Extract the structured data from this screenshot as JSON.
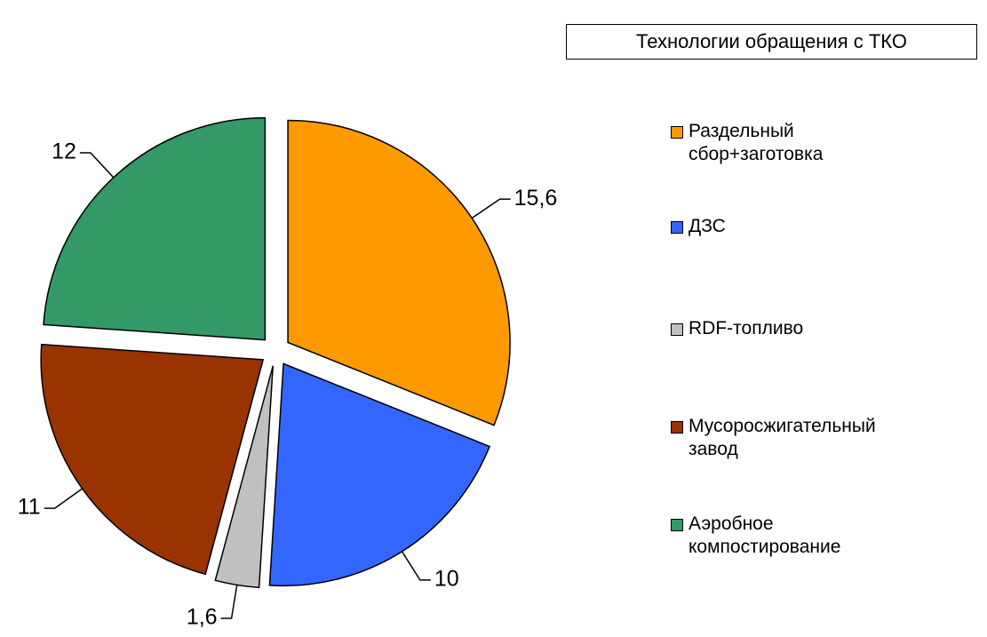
{
  "chart_data": {
    "type": "pie",
    "title": "Технологии обращения с ТКО",
    "categories": [
      "Раздельный\nсбор+заготовка",
      "ДЗС",
      "RDF-топливо",
      "Мусоросжигательный\nзавод",
      "Аэробное\nкомпостирование"
    ],
    "values": [
      15.6,
      10,
      1.6,
      11,
      12
    ],
    "value_labels": [
      "15,6",
      "10",
      "1,6",
      "11",
      "12"
    ],
    "colors": [
      "#ff9900",
      "#3366ff",
      "#c0c0c0",
      "#993300",
      "#339966"
    ],
    "legend": "right"
  }
}
